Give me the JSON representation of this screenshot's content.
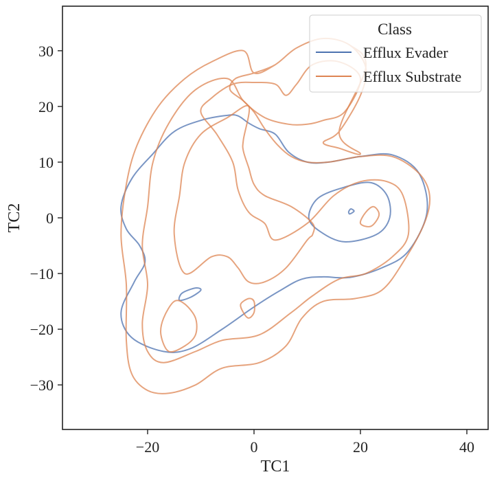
{
  "chart_data": {
    "type": "contour",
    "title": "",
    "xlabel": "TC1",
    "ylabel": "TC2",
    "xlim": [
      -36,
      44
    ],
    "ylim": [
      -38,
      38
    ],
    "xticks": [
      -20,
      0,
      20,
      40
    ],
    "yticks": [
      -30,
      -20,
      -10,
      0,
      10,
      20,
      30
    ],
    "xtick_labels": [
      "−20",
      "0",
      "20",
      "40"
    ],
    "ytick_labels": [
      "−30",
      "−20",
      "−10",
      "0",
      "10",
      "20",
      "30"
    ],
    "grid": false,
    "legend": {
      "title": "Class",
      "placement": "top-right",
      "entries": [
        "Efflux Evader",
        "Efflux Substrate"
      ]
    },
    "series": [
      {
        "name": "Efflux Evader",
        "color": "#4C72B0",
        "contours": [
          [
            [
              -5,
              18.4
            ],
            [
              -10,
              17.5
            ],
            [
              -15,
              15.5
            ],
            [
              -19,
              11.5
            ],
            [
              -23,
              7
            ],
            [
              -25,
              2
            ],
            [
              -24,
              -2
            ],
            [
              -21.5,
              -5
            ],
            [
              -20.5,
              -8
            ],
            [
              -22.5,
              -11.5
            ],
            [
              -25,
              -17
            ],
            [
              -23,
              -21.5
            ],
            [
              -17,
              -24
            ],
            [
              -12,
              -23.5
            ],
            [
              -6,
              -20
            ],
            [
              0,
              -16
            ],
            [
              5,
              -13
            ],
            [
              9,
              -11
            ],
            [
              13,
              -10.6
            ],
            [
              18,
              -10.7
            ],
            [
              24,
              -9
            ],
            [
              29,
              -6
            ],
            [
              32.5,
              1
            ],
            [
              31,
              8
            ],
            [
              26,
              11.3
            ],
            [
              20,
              11
            ],
            [
              14,
              10
            ],
            [
              10,
              10
            ],
            [
              6.5,
              11.8
            ],
            [
              4,
              15
            ],
            [
              1,
              16
            ],
            [
              -1,
              17
            ],
            [
              -3,
              18.3
            ],
            [
              -5,
              18.4
            ]
          ],
          [
            [
              17,
              -4.3
            ],
            [
              12.5,
              -2.5
            ],
            [
              10.3,
              0
            ],
            [
              12,
              3.5
            ],
            [
              17,
              5.5
            ],
            [
              22,
              6.3
            ],
            [
              25,
              4
            ],
            [
              25.5,
              0
            ],
            [
              23,
              -3
            ],
            [
              17,
              -4.3
            ]
          ],
          [
            [
              -14,
              -14.8
            ],
            [
              -13.5,
              -13.5
            ],
            [
              -11,
              -12.6
            ],
            [
              -10,
              -13
            ],
            [
              -12,
              -14.3
            ],
            [
              -14,
              -14.8
            ]
          ],
          [
            [
              18,
              0.7
            ],
            [
              18.8,
              1.2
            ],
            [
              18.2,
              1.6
            ],
            [
              17.8,
              1.1
            ],
            [
              18,
              0.7
            ]
          ]
        ]
      },
      {
        "name": "Efflux Substrate",
        "color": "#DD8452",
        "contours": [
          [
            [
              -2,
              30
            ],
            [
              -8,
              28
            ],
            [
              -13,
              25
            ],
            [
              -18,
              20
            ],
            [
              -22,
              13
            ],
            [
              -24,
              6
            ],
            [
              -25,
              -3
            ],
            [
              -24,
              -12
            ],
            [
              -24,
              -22
            ],
            [
              -23,
              -28
            ],
            [
              -20,
              -31
            ],
            [
              -16,
              -31.5
            ],
            [
              -11,
              -30
            ],
            [
              -6,
              -27
            ],
            [
              1,
              -26
            ],
            [
              6,
              -23
            ],
            [
              9,
              -18
            ],
            [
              13,
              -15
            ],
            [
              19,
              -14.5
            ],
            [
              24,
              -13
            ],
            [
              28,
              -8
            ],
            [
              32,
              -1
            ],
            [
              33,
              4
            ],
            [
              31,
              8
            ],
            [
              26,
              11
            ],
            [
              20,
              11
            ],
            [
              14,
              10
            ],
            [
              10,
              10
            ],
            [
              7,
              11
            ],
            [
              4.5,
              13
            ],
            [
              2,
              16
            ],
            [
              0,
              19
            ],
            [
              -2,
              21
            ],
            [
              -4.5,
              23
            ],
            [
              -3.5,
              25
            ],
            [
              0,
              26
            ],
            [
              4,
              27.5
            ],
            [
              8,
              30.5
            ],
            [
              13,
              32.2
            ],
            [
              18,
              31
            ],
            [
              21,
              27
            ],
            [
              20,
              22
            ],
            [
              16,
              15.5
            ],
            [
              13,
              13.5
            ],
            [
              16,
              12.5
            ],
            [
              20,
              11.5
            ],
            [
              16,
              15.5
            ],
            [
              21,
              27
            ],
            [
              18,
              31
            ],
            [
              13,
              32.2
            ],
            [
              8,
              30.5
            ],
            [
              4,
              27.5
            ],
            [
              0,
              26
            ],
            [
              -2,
              30
            ]
          ],
          [
            [
              -5,
              25
            ],
            [
              -11,
              23
            ],
            [
              -16,
              17
            ],
            [
              -19,
              10
            ],
            [
              -20,
              2
            ],
            [
              -21,
              -5
            ],
            [
              -20,
              -12
            ],
            [
              -21,
              -19
            ],
            [
              -20,
              -24
            ],
            [
              -17,
              -26
            ],
            [
              -11,
              -24
            ],
            [
              -6,
              -22
            ],
            [
              1,
              -21
            ],
            [
              7,
              -17
            ],
            [
              11,
              -14
            ],
            [
              16,
              -11
            ],
            [
              21,
              -10
            ],
            [
              26,
              -7
            ],
            [
              29,
              -3
            ],
            [
              28,
              4
            ],
            [
              25,
              6.5
            ],
            [
              20,
              6.5
            ],
            [
              15,
              4
            ],
            [
              10,
              -1
            ],
            [
              4,
              -4
            ],
            [
              2,
              -1
            ],
            [
              -1,
              1
            ],
            [
              -3,
              5
            ],
            [
              -4,
              10
            ],
            [
              -7,
              15
            ],
            [
              -10,
              19
            ],
            [
              -8,
              21.5
            ],
            [
              -4,
              24
            ],
            [
              0,
              24.3
            ],
            [
              4,
              24
            ],
            [
              6,
              22
            ],
            [
              8,
              24
            ],
            [
              11,
              27.5
            ],
            [
              16,
              28
            ],
            [
              20,
              25
            ],
            [
              17,
              19
            ],
            [
              13,
              17.5
            ],
            [
              10,
              16.8
            ],
            [
              6.5,
              16.8
            ],
            [
              2,
              18
            ],
            [
              -2,
              21
            ],
            [
              -5,
              25
            ]
          ],
          [
            [
              -1,
              20
            ],
            [
              -5,
              18
            ],
            [
              -10,
              15
            ],
            [
              -13,
              10
            ],
            [
              -14,
              4
            ],
            [
              -15,
              -3
            ],
            [
              -13,
              -10
            ],
            [
              -8,
              -7
            ],
            [
              -5,
              -7
            ],
            [
              -3,
              -9
            ],
            [
              -1,
              -11.5
            ],
            [
              2,
              -11.5
            ],
            [
              6,
              -9
            ],
            [
              10,
              -4
            ],
            [
              11,
              -3
            ],
            [
              11,
              -1
            ],
            [
              7,
              2
            ],
            [
              2,
              4
            ],
            [
              0,
              6
            ],
            [
              -1,
              9
            ],
            [
              -2,
              12
            ],
            [
              -2,
              14
            ],
            [
              -1,
              20
            ]
          ],
          [
            [
              -16,
              -24
            ],
            [
              -17.5,
              -21
            ],
            [
              -17,
              -18
            ],
            [
              -15,
              -15
            ],
            [
              -13,
              -15.5
            ],
            [
              -11,
              -18
            ],
            [
              -11,
              -21
            ],
            [
              -13,
              -23
            ],
            [
              -16,
              -24
            ]
          ],
          [
            [
              -2,
              -17
            ],
            [
              -2.5,
              -15.5
            ],
            [
              -1,
              -14.5
            ],
            [
              0,
              -15
            ],
            [
              0,
              -17
            ],
            [
              -1,
              -18
            ],
            [
              -2,
              -17
            ]
          ],
          [
            [
              20,
              -1
            ],
            [
              21,
              1
            ],
            [
              22.5,
              2
            ],
            [
              23.5,
              0.5
            ],
            [
              22,
              -1.5
            ],
            [
              20,
              -1
            ]
          ]
        ]
      }
    ]
  }
}
